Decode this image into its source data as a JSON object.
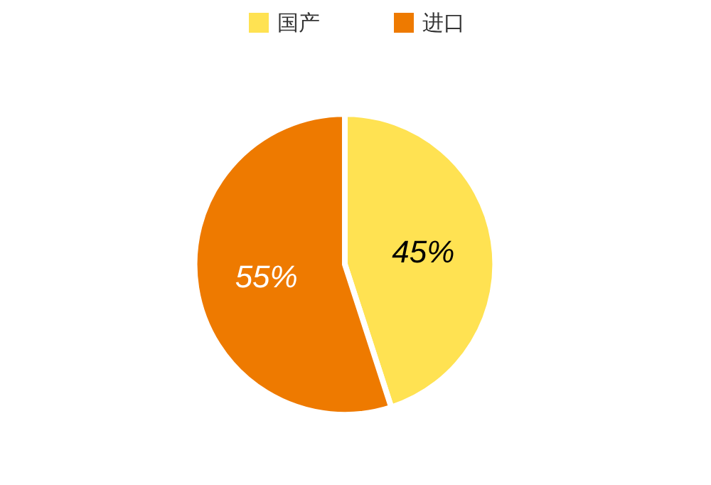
{
  "chart_data": {
    "type": "pie",
    "categories": [
      "国产",
      "进口"
    ],
    "values": [
      45,
      55
    ],
    "colors": [
      "#ffe252",
      "#ee7a00"
    ],
    "value_labels": [
      "45%",
      "55%"
    ],
    "legend": "top"
  }
}
